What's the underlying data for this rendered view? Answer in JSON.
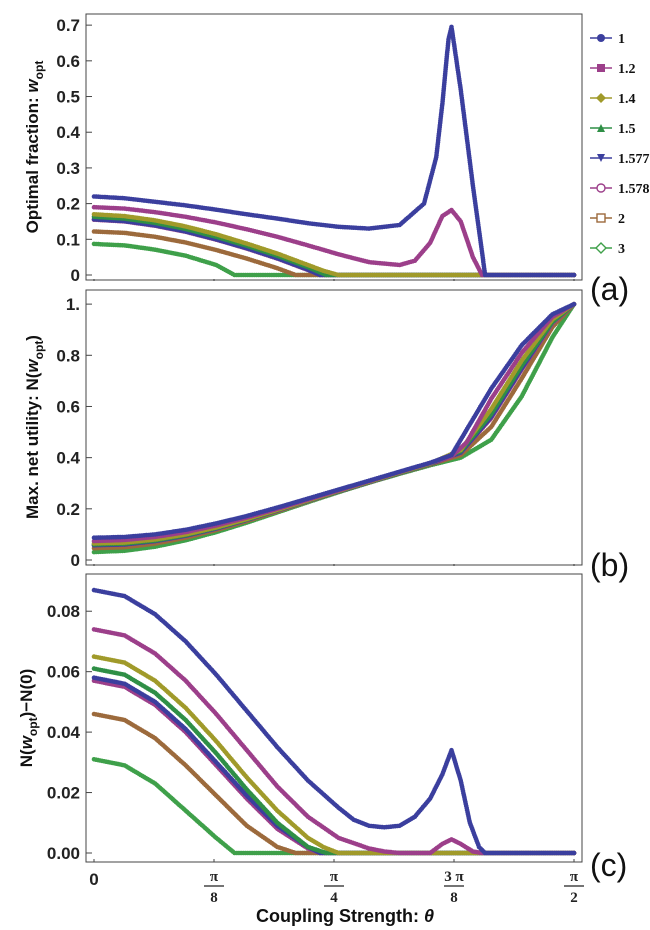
{
  "chart_data": [
    {
      "type": "scatter",
      "panel_label": "(a)",
      "ylabel": "Optimal fraction: w_opt",
      "ylabel_main": "Optimal fraction: ",
      "ylabel_var": "w",
      "ylabel_sub": "opt",
      "xlim": [
        0,
        1.5708
      ],
      "ylim": [
        0,
        0.72
      ],
      "y_ticks": [
        0,
        0.1,
        0.2,
        0.3,
        0.4,
        0.5,
        0.6,
        0.7
      ],
      "y_tick_labels": [
        "0",
        "0.1",
        "0.2",
        "0.3",
        "0.4",
        "0.5",
        "0.6",
        "0.7"
      ],
      "series": [
        {
          "name": "1",
          "x": [
            0,
            0.1,
            0.2,
            0.3,
            0.4,
            0.5,
            0.6,
            0.7,
            0.8,
            0.9,
            1.0,
            1.08,
            1.12,
            1.14,
            1.16,
            1.17,
            1.2,
            1.24,
            1.28,
            1.5708
          ],
          "y": [
            0.22,
            0.215,
            0.205,
            0.195,
            0.183,
            0.17,
            0.158,
            0.145,
            0.135,
            0.13,
            0.14,
            0.2,
            0.33,
            0.48,
            0.66,
            0.695,
            0.52,
            0.25,
            0,
            0
          ]
        },
        {
          "name": "1.2",
          "x": [
            0,
            0.1,
            0.2,
            0.3,
            0.4,
            0.5,
            0.6,
            0.7,
            0.8,
            0.9,
            1.0,
            1.05,
            1.1,
            1.14,
            1.17,
            1.2,
            1.24,
            1.27,
            1.5708
          ],
          "y": [
            0.19,
            0.186,
            0.176,
            0.163,
            0.147,
            0.128,
            0.107,
            0.083,
            0.058,
            0.036,
            0.028,
            0.04,
            0.09,
            0.165,
            0.182,
            0.15,
            0.05,
            0,
            0
          ]
        },
        {
          "name": "1.4",
          "x": [
            0,
            0.1,
            0.2,
            0.3,
            0.4,
            0.5,
            0.6,
            0.7,
            0.75,
            0.8,
            1.5708
          ],
          "y": [
            0.17,
            0.165,
            0.153,
            0.136,
            0.114,
            0.088,
            0.06,
            0.028,
            0.012,
            0,
            0
          ]
        },
        {
          "name": "1.5",
          "x": [
            0,
            0.1,
            0.2,
            0.3,
            0.4,
            0.5,
            0.6,
            0.7,
            0.76,
            1.5708
          ],
          "y": [
            0.163,
            0.158,
            0.146,
            0.129,
            0.107,
            0.082,
            0.054,
            0.022,
            0,
            0
          ]
        },
        {
          "name": "1.577",
          "x": [
            0,
            0.1,
            0.2,
            0.3,
            0.4,
            0.5,
            0.6,
            0.7,
            0.74,
            1.5708
          ],
          "y": [
            0.156,
            0.151,
            0.139,
            0.122,
            0.1,
            0.075,
            0.047,
            0.015,
            0,
            0
          ]
        },
        {
          "name": "1.578",
          "x": [
            0,
            0.1,
            0.2,
            0.3,
            0.4,
            0.5,
            0.6,
            0.7,
            0.74,
            1.5708
          ],
          "y": [
            0.155,
            0.15,
            0.138,
            0.121,
            0.099,
            0.074,
            0.046,
            0.014,
            0,
            0
          ]
        },
        {
          "name": "2",
          "x": [
            0,
            0.1,
            0.2,
            0.3,
            0.4,
            0.5,
            0.6,
            0.66,
            1.5708
          ],
          "y": [
            0.122,
            0.118,
            0.107,
            0.091,
            0.07,
            0.046,
            0.019,
            0,
            0
          ]
        },
        {
          "name": "3",
          "x": [
            0,
            0.1,
            0.2,
            0.3,
            0.4,
            0.46,
            1.5708
          ],
          "y": [
            0.087,
            0.083,
            0.071,
            0.054,
            0.028,
            0,
            0
          ]
        }
      ]
    },
    {
      "type": "scatter",
      "panel_label": "(b)",
      "ylabel": "Max. net utility: N(w_opt)",
      "ylabel_main": "Max. net utility: N(",
      "ylabel_var": "w",
      "ylabel_sub": "opt",
      "ylabel_end": ")",
      "xlim": [
        0,
        1.5708
      ],
      "ylim": [
        0,
        1.02
      ],
      "y_ticks": [
        0,
        0.2,
        0.4,
        0.6,
        0.8,
        1.0
      ],
      "y_tick_labels": [
        "0",
        "0.2",
        "0.4",
        "0.6",
        "0.8",
        "1."
      ],
      "series": [
        {
          "name": "1",
          "x": [
            0,
            0.1,
            0.2,
            0.3,
            0.4,
            0.5,
            0.6,
            0.7,
            0.8,
            0.9,
            1.0,
            1.1,
            1.17,
            1.2,
            1.3,
            1.4,
            1.5,
            1.5708
          ],
          "y": [
            0.087,
            0.09,
            0.1,
            0.118,
            0.143,
            0.172,
            0.205,
            0.24,
            0.275,
            0.31,
            0.345,
            0.38,
            0.41,
            0.47,
            0.67,
            0.84,
            0.96,
            1.0
          ]
        },
        {
          "name": "1.2",
          "x": [
            0,
            0.1,
            0.2,
            0.3,
            0.4,
            0.5,
            0.6,
            0.7,
            0.8,
            0.9,
            1.0,
            1.1,
            1.17,
            1.22,
            1.3,
            1.4,
            1.5,
            1.5708
          ],
          "y": [
            0.074,
            0.078,
            0.09,
            0.109,
            0.135,
            0.166,
            0.2,
            0.236,
            0.272,
            0.308,
            0.344,
            0.379,
            0.405,
            0.46,
            0.63,
            0.81,
            0.95,
            1.0
          ]
        },
        {
          "name": "1.4",
          "x": [
            0,
            0.1,
            0.2,
            0.3,
            0.4,
            0.5,
            0.6,
            0.7,
            0.8,
            0.9,
            1.0,
            1.1,
            1.2,
            1.3,
            1.4,
            1.5,
            1.5708
          ],
          "y": [
            0.065,
            0.068,
            0.08,
            0.1,
            0.127,
            0.16,
            0.196,
            0.233,
            0.27,
            0.306,
            0.342,
            0.377,
            0.43,
            0.59,
            0.78,
            0.94,
            1.0
          ]
        },
        {
          "name": "1.5",
          "x": [
            0,
            0.1,
            0.2,
            0.3,
            0.4,
            0.5,
            0.6,
            0.7,
            0.8,
            0.9,
            1.0,
            1.1,
            1.2,
            1.3,
            1.4,
            1.5,
            1.5708
          ],
          "y": [
            0.061,
            0.064,
            0.076,
            0.097,
            0.125,
            0.158,
            0.195,
            0.232,
            0.269,
            0.305,
            0.341,
            0.376,
            0.425,
            0.57,
            0.76,
            0.93,
            1.0
          ]
        },
        {
          "name": "1.577",
          "x": [
            0,
            0.1,
            0.2,
            0.3,
            0.4,
            0.5,
            0.6,
            0.7,
            0.8,
            0.9,
            1.0,
            1.1,
            1.2,
            1.3,
            1.4,
            1.5,
            1.5708
          ],
          "y": [
            0.058,
            0.061,
            0.074,
            0.095,
            0.123,
            0.157,
            0.194,
            0.231,
            0.268,
            0.304,
            0.34,
            0.375,
            0.42,
            0.56,
            0.75,
            0.93,
            1.0
          ]
        },
        {
          "name": "1.578",
          "x": [
            0,
            0.1,
            0.2,
            0.3,
            0.4,
            0.5,
            0.6,
            0.7,
            0.8,
            0.9,
            1.0,
            1.1,
            1.2,
            1.3,
            1.4,
            1.5,
            1.5708
          ],
          "y": [
            0.057,
            0.06,
            0.073,
            0.094,
            0.122,
            0.156,
            0.193,
            0.231,
            0.268,
            0.304,
            0.34,
            0.375,
            0.419,
            0.555,
            0.745,
            0.925,
            1.0
          ]
        },
        {
          "name": "2",
          "x": [
            0,
            0.1,
            0.2,
            0.3,
            0.4,
            0.5,
            0.6,
            0.7,
            0.8,
            0.9,
            1.0,
            1.1,
            1.2,
            1.3,
            1.4,
            1.5,
            1.5708
          ],
          "y": [
            0.046,
            0.05,
            0.064,
            0.087,
            0.117,
            0.152,
            0.19,
            0.229,
            0.267,
            0.303,
            0.339,
            0.373,
            0.41,
            0.52,
            0.71,
            0.91,
            1.0
          ]
        },
        {
          "name": "3",
          "x": [
            0,
            0.1,
            0.2,
            0.3,
            0.4,
            0.5,
            0.6,
            0.7,
            0.8,
            0.9,
            1.0,
            1.1,
            1.2,
            1.3,
            1.4,
            1.5,
            1.5708
          ],
          "y": [
            0.031,
            0.036,
            0.052,
            0.077,
            0.109,
            0.146,
            0.186,
            0.226,
            0.265,
            0.302,
            0.337,
            0.37,
            0.4,
            0.47,
            0.64,
            0.87,
            1.0
          ]
        }
      ]
    },
    {
      "type": "scatter",
      "panel_label": "(c)",
      "ylabel": "N(w_opt)−N(0)",
      "ylabel_main": "N(",
      "ylabel_var": "w",
      "ylabel_sub": "opt",
      "ylabel_end": ")−N(0)",
      "xlabel": "Coupling Strength: θ",
      "xlabel_main": "Coupling Strength: ",
      "xlabel_var": "θ",
      "xlim": [
        0,
        1.5708
      ],
      "ylim": [
        0,
        0.09
      ],
      "y_ticks": [
        0,
        0.02,
        0.04,
        0.06,
        0.08
      ],
      "y_tick_labels": [
        "0.00",
        "0.02",
        "0.04",
        "0.06",
        "0.08"
      ],
      "x_ticks": [
        0,
        0.3927,
        0.7854,
        1.1781,
        1.5708
      ],
      "x_tick_labels": [
        {
          "num": "0",
          "den": ""
        },
        {
          "num": "π",
          "den": "8"
        },
        {
          "num": "π",
          "den": "4"
        },
        {
          "num": "3 π",
          "den": "8"
        },
        {
          "num": "π",
          "den": "2"
        }
      ],
      "series": [
        {
          "name": "1",
          "x": [
            0,
            0.1,
            0.2,
            0.3,
            0.4,
            0.5,
            0.6,
            0.7,
            0.8,
            0.85,
            0.9,
            0.95,
            1.0,
            1.05,
            1.1,
            1.14,
            1.17,
            1.2,
            1.23,
            1.26,
            1.28,
            1.5708
          ],
          "y": [
            0.087,
            0.085,
            0.079,
            0.07,
            0.059,
            0.047,
            0.035,
            0.024,
            0.015,
            0.011,
            0.009,
            0.0085,
            0.009,
            0.012,
            0.018,
            0.026,
            0.034,
            0.024,
            0.01,
            0.002,
            0,
            0
          ]
        },
        {
          "name": "1.2",
          "x": [
            0,
            0.1,
            0.2,
            0.3,
            0.4,
            0.5,
            0.6,
            0.7,
            0.8,
            0.9,
            0.95,
            1.0,
            1.05,
            1.1,
            1.14,
            1.17,
            1.2,
            1.24,
            1.27,
            1.5708
          ],
          "y": [
            0.074,
            0.072,
            0.066,
            0.057,
            0.046,
            0.034,
            0.022,
            0.012,
            0.005,
            0.0015,
            0.0005,
            0,
            0,
            0,
            0.003,
            0.0045,
            0.003,
            0.0005,
            0,
            0
          ]
        },
        {
          "name": "1.4",
          "x": [
            0,
            0.1,
            0.2,
            0.3,
            0.4,
            0.5,
            0.6,
            0.7,
            0.75,
            0.8,
            1.5708
          ],
          "y": [
            0.065,
            0.063,
            0.057,
            0.048,
            0.037,
            0.025,
            0.014,
            0.005,
            0.002,
            0,
            0
          ]
        },
        {
          "name": "1.5",
          "x": [
            0,
            0.1,
            0.2,
            0.3,
            0.4,
            0.5,
            0.6,
            0.7,
            0.76,
            1.5708
          ],
          "y": [
            0.061,
            0.059,
            0.053,
            0.044,
            0.033,
            0.021,
            0.01,
            0.002,
            0,
            0
          ]
        },
        {
          "name": "1.577",
          "x": [
            0,
            0.1,
            0.2,
            0.3,
            0.4,
            0.5,
            0.6,
            0.7,
            0.74,
            1.5708
          ],
          "y": [
            0.058,
            0.056,
            0.05,
            0.041,
            0.03,
            0.019,
            0.009,
            0.002,
            0,
            0
          ]
        },
        {
          "name": "1.578",
          "x": [
            0,
            0.1,
            0.2,
            0.3,
            0.4,
            0.5,
            0.6,
            0.7,
            0.74,
            1.5708
          ],
          "y": [
            0.057,
            0.055,
            0.049,
            0.04,
            0.029,
            0.018,
            0.008,
            0.0015,
            0,
            0
          ]
        },
        {
          "name": "2",
          "x": [
            0,
            0.1,
            0.2,
            0.3,
            0.4,
            0.5,
            0.6,
            0.66,
            1.5708
          ],
          "y": [
            0.046,
            0.044,
            0.038,
            0.029,
            0.019,
            0.009,
            0.002,
            0,
            0
          ]
        },
        {
          "name": "3",
          "x": [
            0,
            0.1,
            0.2,
            0.3,
            0.4,
            0.46,
            1.5708
          ],
          "y": [
            0.031,
            0.029,
            0.023,
            0.014,
            0.005,
            0,
            0
          ]
        }
      ]
    }
  ],
  "legend": {
    "placement": "right",
    "entries": [
      {
        "label": "1",
        "color": "#3b3f9e",
        "marker": "circle"
      },
      {
        "label": "1.2",
        "color": "#9c3f8a",
        "marker": "square"
      },
      {
        "label": "1.4",
        "color": "#a09a2a",
        "marker": "diamond"
      },
      {
        "label": "1.5",
        "color": "#2f8f46",
        "marker": "triangle-up"
      },
      {
        "label": "1.577",
        "color": "#3b3f9e",
        "marker": "triangle-down"
      },
      {
        "label": "1.578",
        "color": "#9c3f8a",
        "marker": "open-circle"
      },
      {
        "label": "2",
        "color": "#9c6a3c",
        "marker": "open-square"
      },
      {
        "label": "3",
        "color": "#3fa04a",
        "marker": "open-diamond"
      }
    ]
  },
  "colors": {
    "series": [
      "#3b3f9e",
      "#9c3f8a",
      "#a09a2a",
      "#2f8f46",
      "#3b3f9e",
      "#9c3f8a",
      "#9c6a3c",
      "#3fa04a"
    ],
    "frame": "#444444",
    "text": "#111111"
  }
}
